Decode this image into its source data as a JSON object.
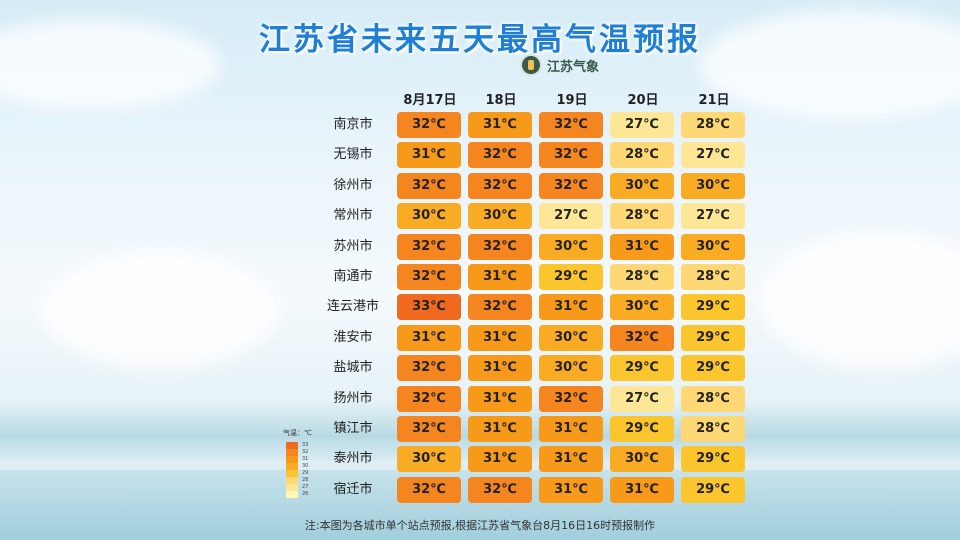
{
  "title": "江苏省未来五天最高气温预报",
  "logo_text": "江苏气象",
  "dates": [
    "8月17日",
    "18日",
    "19日",
    "20日",
    "21日"
  ],
  "cities": [
    {
      "name": "南京市",
      "temps": [
        "32℃",
        "31℃",
        "32℃",
        "27℃",
        "28℃"
      ]
    },
    {
      "name": "无锡市",
      "temps": [
        "31℃",
        "32℃",
        "32℃",
        "28℃",
        "27℃"
      ]
    },
    {
      "name": "徐州市",
      "temps": [
        "32℃",
        "32℃",
        "32℃",
        "30℃",
        "30℃"
      ]
    },
    {
      "name": "常州市",
      "temps": [
        "30℃",
        "30℃",
        "27℃",
        "28℃",
        "27℃"
      ]
    },
    {
      "name": "苏州市",
      "temps": [
        "32℃",
        "32℃",
        "30℃",
        "31℃",
        "30℃"
      ]
    },
    {
      "name": "南通市",
      "temps": [
        "32℃",
        "31℃",
        "29℃",
        "28℃",
        "28℃"
      ]
    },
    {
      "name": "连云港市",
      "temps": [
        "33℃",
        "32℃",
        "31℃",
        "30℃",
        "29℃"
      ]
    },
    {
      "name": "淮安市",
      "temps": [
        "31℃",
        "31℃",
        "30℃",
        "32℃",
        "29℃"
      ]
    },
    {
      "name": "盐城市",
      "temps": [
        "32℃",
        "31℃",
        "30℃",
        "29℃",
        "29℃"
      ]
    },
    {
      "name": "扬州市",
      "temps": [
        "32℃",
        "31℃",
        "32℃",
        "27℃",
        "28℃"
      ]
    },
    {
      "name": "镇江市",
      "temps": [
        "32℃",
        "31℃",
        "31℃",
        "29℃",
        "28℃"
      ]
    },
    {
      "name": "泰州市",
      "temps": [
        "30℃",
        "31℃",
        "31℃",
        "30℃",
        "29℃"
      ]
    },
    {
      "name": "宿迁市",
      "temps": [
        "32℃",
        "32℃",
        "31℃",
        "31℃",
        "29℃"
      ]
    }
  ],
  "legend": {
    "title": "气温：℃",
    "levels": [
      "33",
      "32",
      "31",
      "30",
      "29",
      "28",
      "27",
      "26"
    ]
  },
  "footnote": "注:本图为各城市单个站点预报,根据江苏省气象台8月16日16时预报制作",
  "colors": {
    "title": "#1f7fd6",
    "26": "#fff7b3",
    "27": "#fde797",
    "28": "#fdd874",
    "29": "#fbc62d",
    "30": "#f9ab24",
    "31": "#f79a19",
    "32": "#f5851f",
    "33": "#ef6a1e"
  }
}
